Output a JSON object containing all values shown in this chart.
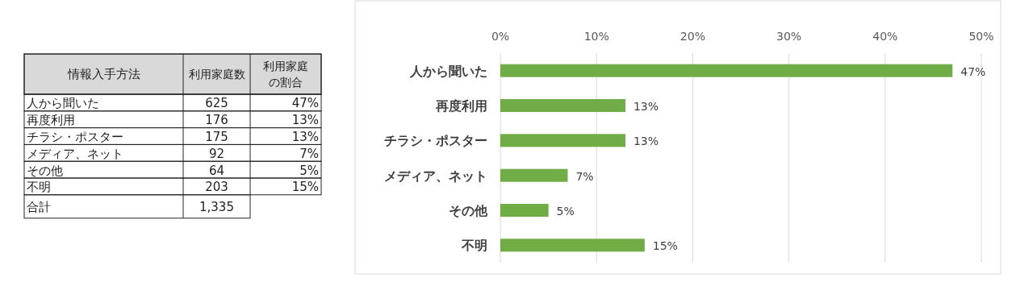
{
  "chart_data": [
    {
      "type": "other",
      "xlabel": "情報入手方法",
      "categories": [
        "人から聞いた",
        "再度利用",
        "チラシ・ポスター",
        "メディア、ネット",
        "その他",
        "不明",
        "合計"
      ],
      "series": [
        {
          "name": "利用家庭数",
          "values": [
            625,
            176,
            175,
            92,
            64,
            203,
            1335
          ],
          "value_labels": [
            "625",
            "176",
            "175",
            "92",
            "64",
            "203",
            "1,335"
          ]
        },
        {
          "name": "利用家庭の割合",
          "values": [
            47,
            13,
            13,
            7,
            5,
            15,
            null
          ],
          "value_labels": [
            "47%",
            "13%",
            "13%",
            "7%",
            "5%",
            "15%",
            null
          ]
        }
      ]
    },
    {
      "type": "bar",
      "orientation": "horizontal",
      "categories": [
        "人から聞いた",
        "再度利用",
        "チラシ・ポスター",
        "メディア、ネット",
        "その他",
        "不明"
      ],
      "values": [
        47,
        13,
        13,
        7,
        5,
        15
      ],
      "value_labels": [
        "47%",
        "13%",
        "13%",
        "7%",
        "5%",
        "15%"
      ],
      "color": "#70ad47",
      "xlim": [
        0,
        50
      ],
      "xticks": [
        {
          "value": 0,
          "label": "0%"
        },
        {
          "value": 10,
          "label": "10%"
        },
        {
          "value": 20,
          "label": "20%"
        },
        {
          "value": 30,
          "label": "30%"
        },
        {
          "value": 40,
          "label": "40%"
        },
        {
          "value": 50,
          "label": "50%"
        }
      ],
      "grid": "x"
    }
  ]
}
